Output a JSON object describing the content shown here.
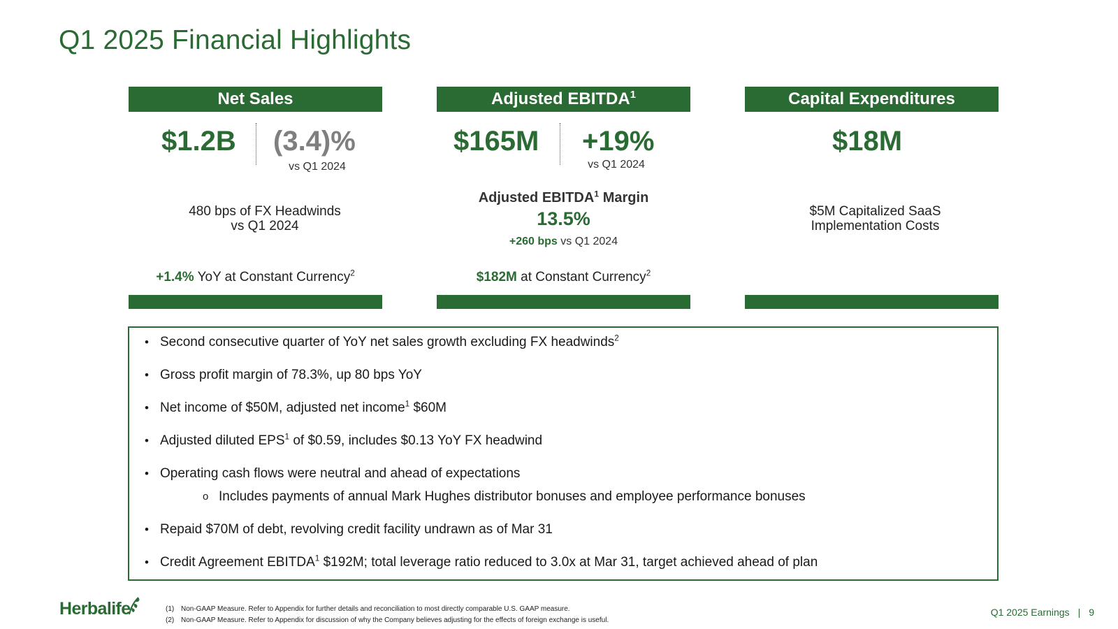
{
  "title": "Q1 2025 Financial Highlights",
  "cards": {
    "net_sales": {
      "header": "Net Sales",
      "value": "$1.2B",
      "change": "(3.4)%",
      "change_label": "vs Q1 2024",
      "note_line1": "480 bps of FX Headwinds",
      "note_line2": "vs Q1 2024",
      "cc_value": "+1.4%",
      "cc_text": " YoY at Constant Currency",
      "cc_sup": "2"
    },
    "adj_ebitda": {
      "header": "Adjusted EBITDA",
      "header_sup": "1",
      "value": "$165M",
      "change": "+19%",
      "change_label": "vs Q1 2024",
      "margin_label": "Adjusted EBITDA",
      "margin_sup": "1",
      "margin_label_tail": " Margin",
      "margin_value": "13.5%",
      "margin_bps": "+260 bps",
      "margin_bps_text": " vs Q1 2024",
      "cc_value": "$182M",
      "cc_text": " at Constant Currency",
      "cc_sup": "2"
    },
    "capex": {
      "header": "Capital Expenditures",
      "value": "$18M",
      "note_line1": "$5M Capitalized SaaS",
      "note_line2": "Implementation Costs"
    }
  },
  "bullets": [
    {
      "text": "Second consecutive quarter of YoY net sales growth excluding FX headwinds",
      "sup": "2"
    },
    {
      "text": "Gross profit margin of 78.3%, up 80 bps YoY"
    },
    {
      "pre": "Net income of $50M, adjusted net income",
      "sup": "1",
      "post": " $60M"
    },
    {
      "pre": "Adjusted diluted EPS",
      "sup": "1",
      "post": " of $0.59, includes $0.13 YoY FX headwind"
    },
    {
      "text": "Operating cash flows were neutral and ahead of expectations",
      "sub": "Includes payments of annual Mark Hughes distributor bonuses and employee performance bonuses"
    },
    {
      "text": "Repaid $70M of debt, revolving credit facility undrawn as of Mar 31"
    },
    {
      "pre": "Credit Agreement EBITDA",
      "sup": "1",
      "post": " $192M; total leverage ratio reduced to 3.0x at Mar 31, target achieved ahead of plan"
    }
  ],
  "footer": {
    "logo": "Herbalife",
    "footnotes": [
      {
        "num": "(1)",
        "text": "Non-GAAP Measure. Refer to Appendix for further details and reconciliation to most directly comparable U.S. GAAP measure."
      },
      {
        "num": "(2)",
        "text": "Non-GAAP Measure. Refer to Appendix for discussion of why the Company believes adjusting for the effects of foreign exchange is useful."
      }
    ],
    "report": "Q1 2025 Earnings",
    "separator": "|",
    "page": "9"
  }
}
